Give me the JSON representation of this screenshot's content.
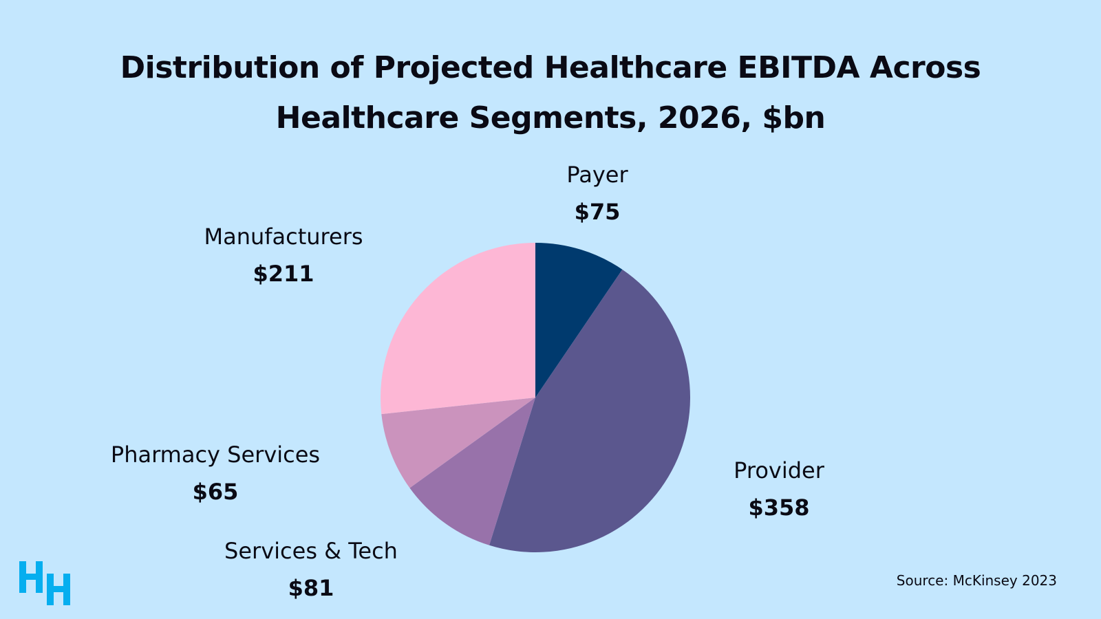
{
  "chart_data": {
    "type": "pie",
    "title": "Distribution of Projected Healthcare EBITDA Across Healthcare Segments, 2026, $bn",
    "title_lines": [
      "Distribution of Projected Healthcare EBITDA Across",
      "Healthcare Segments, 2026, $bn"
    ],
    "unit": "$bn",
    "start": "top",
    "direction": "clockwise",
    "slices": [
      {
        "label": "Payer",
        "value": 75,
        "display": "$75",
        "color": "#003a6e"
      },
      {
        "label": "Provider",
        "value": 358,
        "display": "$358",
        "color": "#5b578e"
      },
      {
        "label": "Services & Tech",
        "value": 81,
        "display": "$81",
        "color": "#9872aa"
      },
      {
        "label": "Pharmacy Services",
        "value": 65,
        "display": "$65",
        "color": "#cb93bd"
      },
      {
        "label": "Manufacturers",
        "value": 211,
        "display": "$211",
        "color": "#fdb7d5"
      }
    ]
  },
  "source": "Source: McKinsey 2023",
  "logo": {
    "text": "HH",
    "color": "#05aeef"
  },
  "background": "#c4e7fe"
}
